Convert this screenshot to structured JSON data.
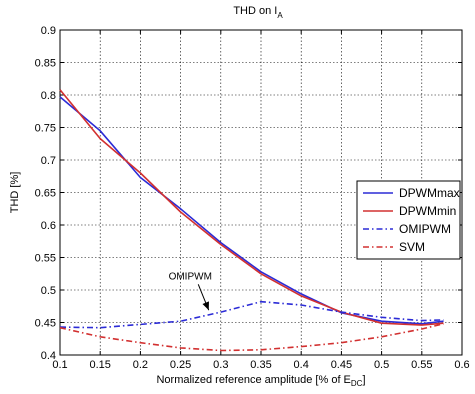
{
  "chart_data": {
    "type": "line",
    "title": {
      "main": "THD on I",
      "sub": "A"
    },
    "xlabel": {
      "main": "Normalized reference amplitude [% of E",
      "sub": "DC",
      "end": "]"
    },
    "ylabel": "THD [%]",
    "xlim": [
      0.1,
      0.6
    ],
    "ylim": [
      0.4,
      0.9
    ],
    "xticks": [
      "0.1",
      "0.15",
      "0.2",
      "0.25",
      "0.3",
      "0.35",
      "0.4",
      "0.45",
      "0.5",
      "0.55",
      "0.6"
    ],
    "yticks": [
      "0.4",
      "0.45",
      "0.5",
      "0.55",
      "0.6",
      "0.65",
      "0.7",
      "0.75",
      "0.8",
      "0.85",
      "0.9"
    ],
    "grid": true,
    "legend_position": "right",
    "series": [
      {
        "name": "DPWMmax",
        "color": "#2b2bd6",
        "dash": "solid",
        "x": [
          0.1,
          0.15,
          0.2,
          0.25,
          0.3,
          0.35,
          0.4,
          0.45,
          0.5,
          0.55,
          0.577
        ],
        "y": [
          0.797,
          0.745,
          0.673,
          0.625,
          0.573,
          0.528,
          0.494,
          0.465,
          0.452,
          0.448,
          0.452
        ]
      },
      {
        "name": "DPWMmin",
        "color": "#d23030",
        "dash": "solid",
        "x": [
          0.1,
          0.15,
          0.2,
          0.25,
          0.3,
          0.35,
          0.4,
          0.45,
          0.5,
          0.55,
          0.577
        ],
        "y": [
          0.808,
          0.733,
          0.68,
          0.62,
          0.57,
          0.525,
          0.491,
          0.466,
          0.449,
          0.446,
          0.449
        ]
      },
      {
        "name": "OMIPWM",
        "color": "#2b2bd6",
        "dash": "dashdot",
        "x": [
          0.1,
          0.15,
          0.2,
          0.25,
          0.3,
          0.35,
          0.4,
          0.45,
          0.5,
          0.55,
          0.577
        ],
        "y": [
          0.443,
          0.442,
          0.447,
          0.452,
          0.466,
          0.482,
          0.477,
          0.466,
          0.458,
          0.453,
          0.454
        ]
      },
      {
        "name": "SVM",
        "color": "#d23030",
        "dash": "dashdot",
        "x": [
          0.1,
          0.15,
          0.2,
          0.25,
          0.3,
          0.35,
          0.4,
          0.45,
          0.5,
          0.55,
          0.577
        ],
        "y": [
          0.442,
          0.428,
          0.419,
          0.411,
          0.407,
          0.408,
          0.413,
          0.419,
          0.428,
          0.44,
          0.448
        ]
      }
    ],
    "annotations": [
      {
        "text": "OMIPWM",
        "x": 0.262,
        "y": 0.5165,
        "arrow_to": [
          0.285,
          0.469
        ]
      }
    ]
  }
}
